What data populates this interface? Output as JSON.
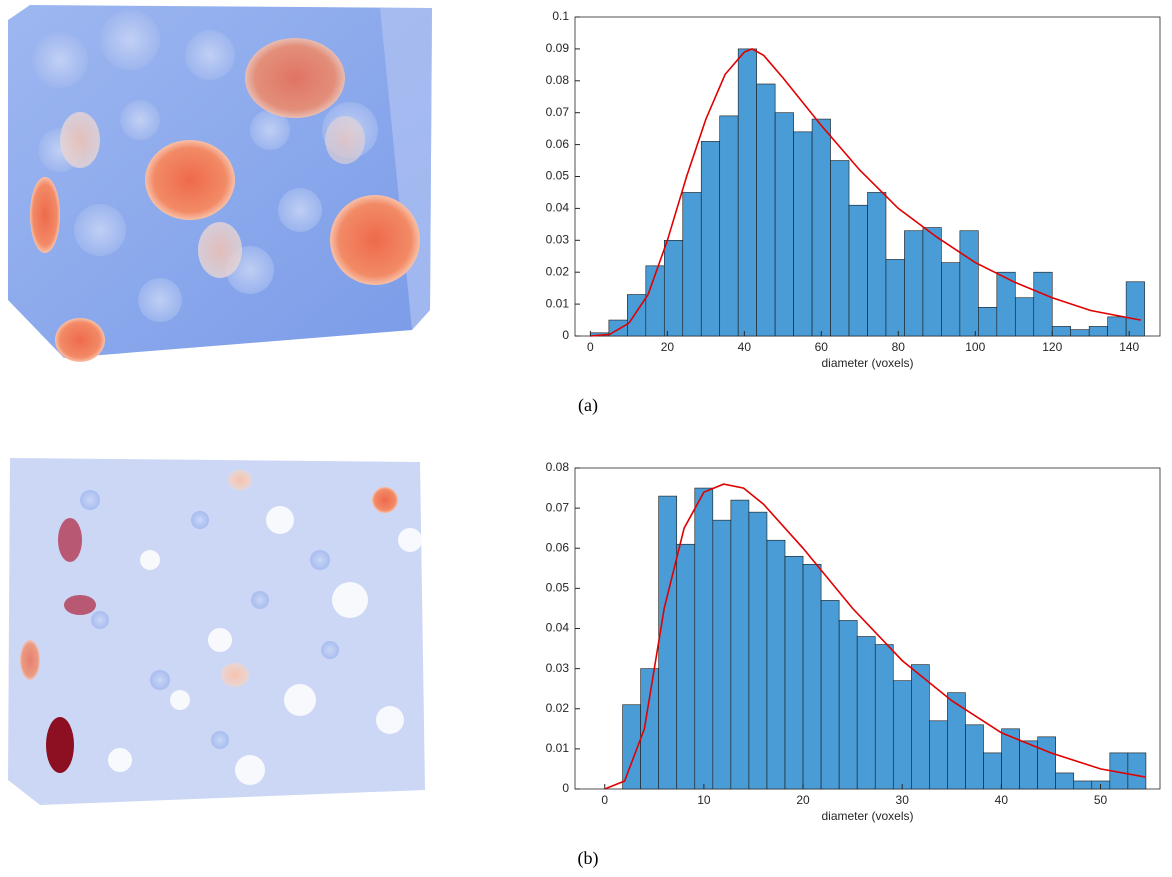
{
  "chart_data": [
    {
      "type": "histogram",
      "caption": "(a)",
      "xlabel": "diameter (voxels)",
      "color": "#4a9cd6",
      "bins": [
        0,
        4.8,
        9.6,
        14.4,
        19.2,
        24,
        28.8,
        33.6,
        38.4,
        43.2,
        48,
        52.8,
        57.6,
        62.4,
        67.2,
        72,
        76.8,
        81.6,
        86.4,
        91.2,
        96,
        100.8,
        105.6,
        110.4,
        115.2,
        120,
        124.8,
        129.6,
        134.4,
        139.2,
        144
      ],
      "values": [
        0.001,
        0.005,
        0.013,
        0.022,
        0.03,
        0.045,
        0.061,
        0.069,
        0.09,
        0.079,
        0.07,
        0.064,
        0.068,
        0.055,
        0.041,
        0.045,
        0.024,
        0.033,
        0.034,
        0.023,
        0.033,
        0.009,
        0.02,
        0.012,
        0.02,
        0.003,
        0.002,
        0.003,
        0.006,
        0.017
      ],
      "fit": {
        "color": "#e00000",
        "x": [
          0,
          5,
          10,
          15,
          20,
          25,
          30,
          35,
          40,
          42,
          45,
          50,
          60,
          70,
          80,
          90,
          100,
          110,
          120,
          130,
          143
        ],
        "values": [
          0,
          0.0005,
          0.004,
          0.013,
          0.03,
          0.05,
          0.068,
          0.082,
          0.089,
          0.09,
          0.088,
          0.081,
          0.066,
          0.052,
          0.04,
          0.031,
          0.023,
          0.017,
          0.012,
          0.008,
          0.005
        ]
      },
      "xlim": [
        -4,
        148
      ],
      "ylim": [
        0,
        0.1
      ],
      "xticks": [
        0,
        20,
        40,
        60,
        80,
        100,
        120,
        140
      ],
      "yticks": [
        0,
        0.01,
        0.02,
        0.03,
        0.04,
        0.05,
        0.06,
        0.07,
        0.08,
        0.09,
        0.1
      ]
    },
    {
      "type": "histogram",
      "caption": "(b)",
      "xlabel": "diameter (voxels)",
      "color": "#4a9cd6",
      "bins": [
        1.8,
        3.62,
        5.44,
        7.26,
        9.08,
        10.9,
        12.72,
        14.54,
        16.36,
        18.18,
        20,
        21.82,
        23.64,
        25.46,
        27.28,
        29.1,
        30.92,
        32.74,
        34.56,
        36.38,
        38.2,
        40.02,
        41.84,
        43.66,
        45.48,
        47.3,
        49.12,
        50.94,
        52.76,
        54.58
      ],
      "values": [
        0.021,
        0.03,
        0.073,
        0.061,
        0.075,
        0.067,
        0.072,
        0.069,
        0.062,
        0.058,
        0.056,
        0.047,
        0.042,
        0.038,
        0.036,
        0.027,
        0.031,
        0.017,
        0.024,
        0.016,
        0.009,
        0.015,
        0.012,
        0.013,
        0.004,
        0.002,
        0.002,
        0.009,
        0.009
      ],
      "fit": {
        "color": "#e00000",
        "x": [
          0,
          2,
          4,
          6,
          8,
          10,
          12,
          14,
          16,
          20,
          25,
          30,
          35,
          40,
          45,
          50,
          54.5
        ],
        "values": [
          0,
          0.002,
          0.015,
          0.045,
          0.065,
          0.074,
          0.076,
          0.075,
          0.071,
          0.06,
          0.045,
          0.032,
          0.022,
          0.014,
          0.009,
          0.005,
          0.003
        ]
      },
      "xlim": [
        -3,
        56
      ],
      "ylim": [
        0,
        0.08
      ],
      "xticks": [
        0,
        10,
        20,
        30,
        40,
        50
      ],
      "yticks": [
        0,
        0.01,
        0.02,
        0.03,
        0.04,
        0.05,
        0.06,
        0.07,
        0.08
      ]
    }
  ]
}
